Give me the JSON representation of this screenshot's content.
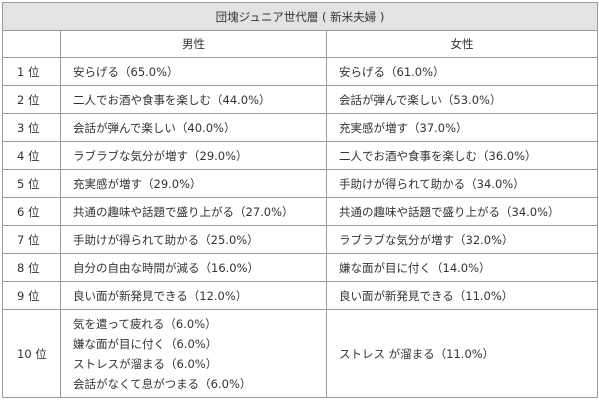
{
  "table": {
    "title": "団塊ジュニア世代層 ( 新米夫婦 )",
    "col_male": "男性",
    "col_female": "女性",
    "rows": [
      {
        "rank": "1 位",
        "male": "安らげる（65.0%）",
        "female": "安らげる（61.0%）"
      },
      {
        "rank": "2 位",
        "male": "二人でお酒や食事を楽しむ（44.0%）",
        "female": "会話が弾んで楽しい（53.0%）"
      },
      {
        "rank": "3 位",
        "male": "会話が弾んで楽しい（40.0%）",
        "female": "充実感が増す（37.0%）"
      },
      {
        "rank": "4 位",
        "male": "ラブラブな気分が増す（29.0%）",
        "female": "二人でお酒や食事を楽しむ（36.0%）"
      },
      {
        "rank": "5 位",
        "male": "充実感が増す（29.0%）",
        "female": "手助けが得られて助かる（34.0%）"
      },
      {
        "rank": "6 位",
        "male": "共通の趣味や話題で盛り上がる（27.0%）",
        "female": "共通の趣味や話題で盛り上がる（34.0%）"
      },
      {
        "rank": "7 位",
        "male": "手助けが得られて助かる（25.0%）",
        "female": "ラブラブな気分が増す（32.0%）"
      },
      {
        "rank": "8 位",
        "male": "自分の自由な時間が減る（16.0%）",
        "female": "嫌な面が目に付く（14.0%）"
      },
      {
        "rank": "9 位",
        "male": "良い面が新発見できる（12.0%）",
        "female": "良い面が新発見できる（11.0%）"
      }
    ],
    "last_row": {
      "rank": "10 位",
      "male": [
        "気を遣って疲れる（6.0%）",
        "嫌な面が目に付く（6.0%）",
        "ストレスが溜まる（6.0%）",
        "会話がなくて息がつまる（6.0%）"
      ],
      "female": "ストレス が溜まる（11.0%）"
    }
  }
}
